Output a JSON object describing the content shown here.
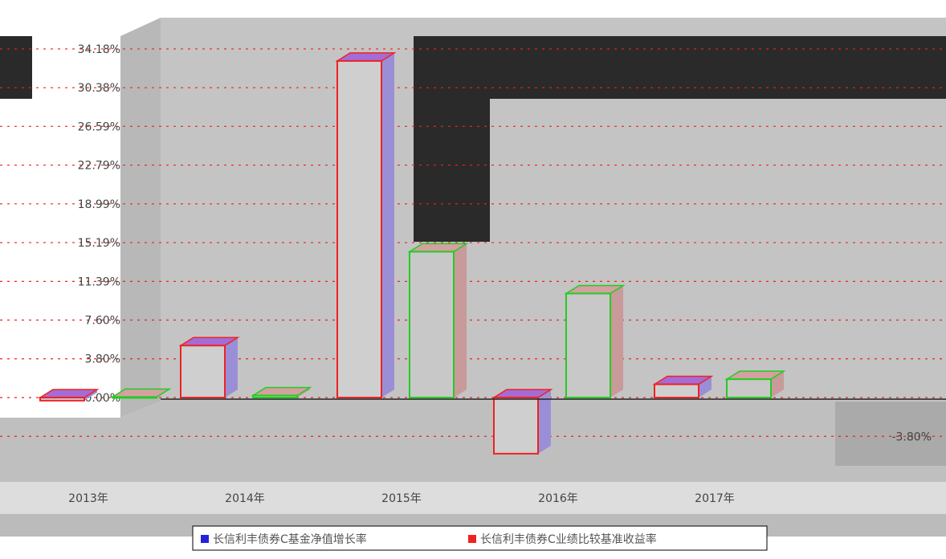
{
  "chart_data": {
    "type": "bar",
    "categories": [
      "2013年",
      "2014年",
      "2015年",
      "2016年",
      "2017年"
    ],
    "series": [
      {
        "name": "长信利丰债券C基金净值增长率",
        "color": "#2222dd",
        "values": [
          -0.3,
          5.1,
          33.0,
          -5.5,
          1.3
        ]
      },
      {
        "name": "长信利丰债券C业绩比较基准收益率",
        "color": "#ee2222",
        "values": [
          0.05,
          0.2,
          14.3,
          10.2,
          1.8
        ]
      }
    ],
    "y_tick_labels": [
      "34.18%",
      "30.38%",
      "26.59%",
      "22.79%",
      "18.99%",
      "15.19%",
      "11.39%",
      "7.60%",
      "3.80%",
      "0.00%",
      "-3.80%"
    ],
    "ylim": [
      -6.5,
      36
    ],
    "grid": true,
    "legend_position": "bottom"
  }
}
